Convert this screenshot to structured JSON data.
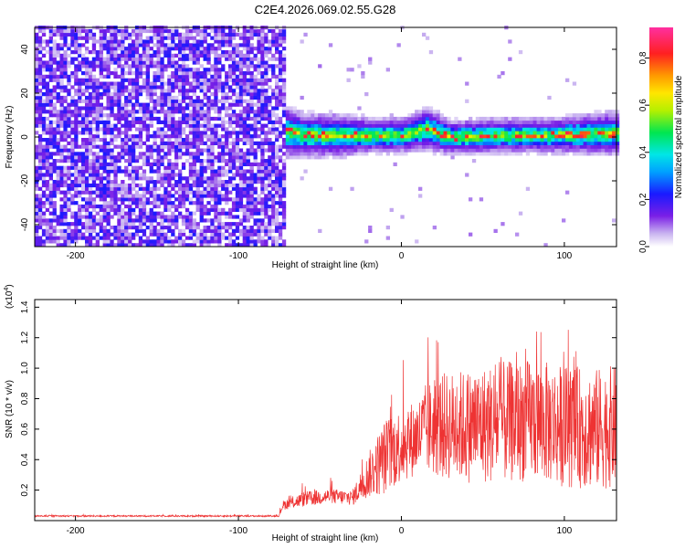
{
  "title": "C2E4.2026.069.02.55.G28",
  "chart_data": [
    {
      "type": "heatmap",
      "xlabel": "Height of straight line (km)",
      "ylabel": "Frequency (Hz)",
      "xlim": [
        -225,
        132
      ],
      "ylim": [
        -50,
        50
      ],
      "xticks": [
        -200,
        -100,
        0,
        100
      ],
      "yticks": [
        -40,
        -20,
        0,
        20,
        40
      ],
      "noise_region_x": [
        -225,
        -73
      ],
      "signal_band": [
        {
          "x": -73,
          "center": 2,
          "halfwidth": 6
        },
        {
          "x": -60,
          "center": 0,
          "halfwidth": 5
        },
        {
          "x": -40,
          "center": 0,
          "halfwidth": 5
        },
        {
          "x": -20,
          "center": 0,
          "halfwidth": 4
        },
        {
          "x": 0,
          "center": 0,
          "halfwidth": 4
        },
        {
          "x": 15,
          "center": 3,
          "halfwidth": 5
        },
        {
          "x": 30,
          "center": -1,
          "halfwidth": 4
        },
        {
          "x": 60,
          "center": 0,
          "halfwidth": 4
        },
        {
          "x": 90,
          "center": 0,
          "halfwidth": 4
        },
        {
          "x": 132,
          "center": 1,
          "halfwidth": 5
        }
      ],
      "colorbar": {
        "label": "Normalized spectral amplitude",
        "range": [
          0.0,
          0.93
        ],
        "ticks": [
          0.0,
          0.2,
          0.4,
          0.6,
          0.8
        ],
        "tick_labels": [
          "0.0",
          "0.2",
          "0.4",
          "0.6",
          "0.8"
        ],
        "colormap": "rainbow"
      }
    },
    {
      "type": "line",
      "xlabel": "Height of straight line (km)",
      "ylabel": "SNR (10 * v/v)",
      "y_multiplier_label": "(x10",
      "y_multiplier_exp": "4",
      "y_multiplier_close": ")",
      "xlim": [
        -225,
        132
      ],
      "ylim": [
        0,
        1.45
      ],
      "xticks": [
        -200,
        -100,
        0,
        100
      ],
      "yticks": [
        0.2,
        0.4,
        0.6,
        0.8,
        1.0,
        1.2,
        1.4
      ],
      "color": "#ee3333",
      "series": [
        {
          "x": [
            -225,
            -100,
            -75,
            -73,
            -60,
            -45,
            -30,
            -20,
            -10,
            0,
            10,
            15,
            25,
            40,
            60,
            80,
            100,
            120,
            132
          ],
          "y": [
            0.03,
            0.03,
            0.03,
            0.1,
            0.14,
            0.16,
            0.15,
            0.3,
            0.42,
            0.5,
            0.55,
            0.6,
            0.62,
            0.62,
            0.64,
            0.66,
            0.62,
            0.6,
            0.62
          ],
          "spread": [
            0.01,
            0.01,
            0.01,
            0.06,
            0.1,
            0.1,
            0.1,
            0.3,
            0.5,
            0.5,
            0.5,
            0.6,
            0.7,
            0.75,
            0.8,
            0.8,
            0.8,
            0.8,
            0.8
          ]
        }
      ]
    }
  ]
}
